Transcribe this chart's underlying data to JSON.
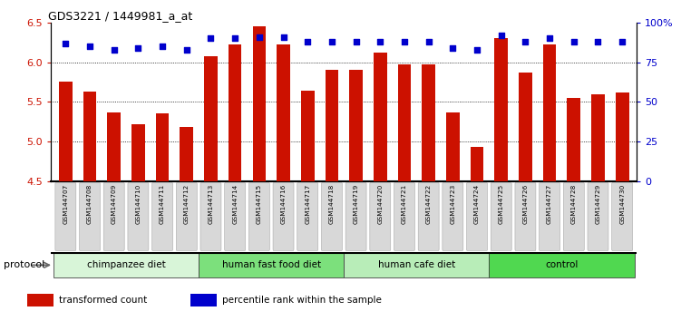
{
  "title": "GDS3221 / 1449981_a_at",
  "samples": [
    "GSM144707",
    "GSM144708",
    "GSM144709",
    "GSM144710",
    "GSM144711",
    "GSM144712",
    "GSM144713",
    "GSM144714",
    "GSM144715",
    "GSM144716",
    "GSM144717",
    "GSM144718",
    "GSM144719",
    "GSM144720",
    "GSM144721",
    "GSM144722",
    "GSM144723",
    "GSM144724",
    "GSM144725",
    "GSM144726",
    "GSM144727",
    "GSM144728",
    "GSM144729",
    "GSM144730"
  ],
  "bar_values": [
    5.75,
    5.63,
    5.37,
    5.22,
    5.36,
    5.18,
    6.08,
    6.22,
    6.45,
    6.22,
    5.64,
    5.9,
    5.9,
    6.12,
    5.97,
    5.97,
    5.37,
    4.93,
    6.3,
    5.87,
    6.22,
    5.55,
    5.6,
    5.62
  ],
  "percentile_values": [
    87,
    85,
    83,
    84,
    85,
    83,
    90,
    90,
    91,
    91,
    88,
    88,
    88,
    88,
    88,
    88,
    84,
    83,
    92,
    88,
    90,
    88,
    88,
    88
  ],
  "groups": [
    {
      "label": "chimpanzee diet",
      "start": 0,
      "end": 6,
      "color": "#d8f5d8"
    },
    {
      "label": "human fast food diet",
      "start": 6,
      "end": 12,
      "color": "#7ce07c"
    },
    {
      "label": "human cafe diet",
      "start": 12,
      "end": 18,
      "color": "#b8edb8"
    },
    {
      "label": "control",
      "start": 18,
      "end": 24,
      "color": "#50d850"
    }
  ],
  "bar_color": "#cc1100",
  "percentile_color": "#0000cc",
  "ylim_left": [
    4.5,
    6.5
  ],
  "ylim_right": [
    0,
    100
  ],
  "yticks_left": [
    4.5,
    5.0,
    5.5,
    6.0,
    6.5
  ],
  "yticks_right": [
    0,
    25,
    50,
    75,
    100
  ],
  "ytick_labels_right": [
    "0",
    "25",
    "50",
    "75",
    "100%"
  ],
  "grid_values": [
    5.0,
    5.5,
    6.0
  ],
  "bg_color": "#ffffff",
  "legend_items": [
    {
      "label": "transformed count",
      "color": "#cc1100"
    },
    {
      "label": "percentile rank within the sample",
      "color": "#0000cc"
    }
  ],
  "protocol_label": "protocol",
  "bar_width": 0.55
}
